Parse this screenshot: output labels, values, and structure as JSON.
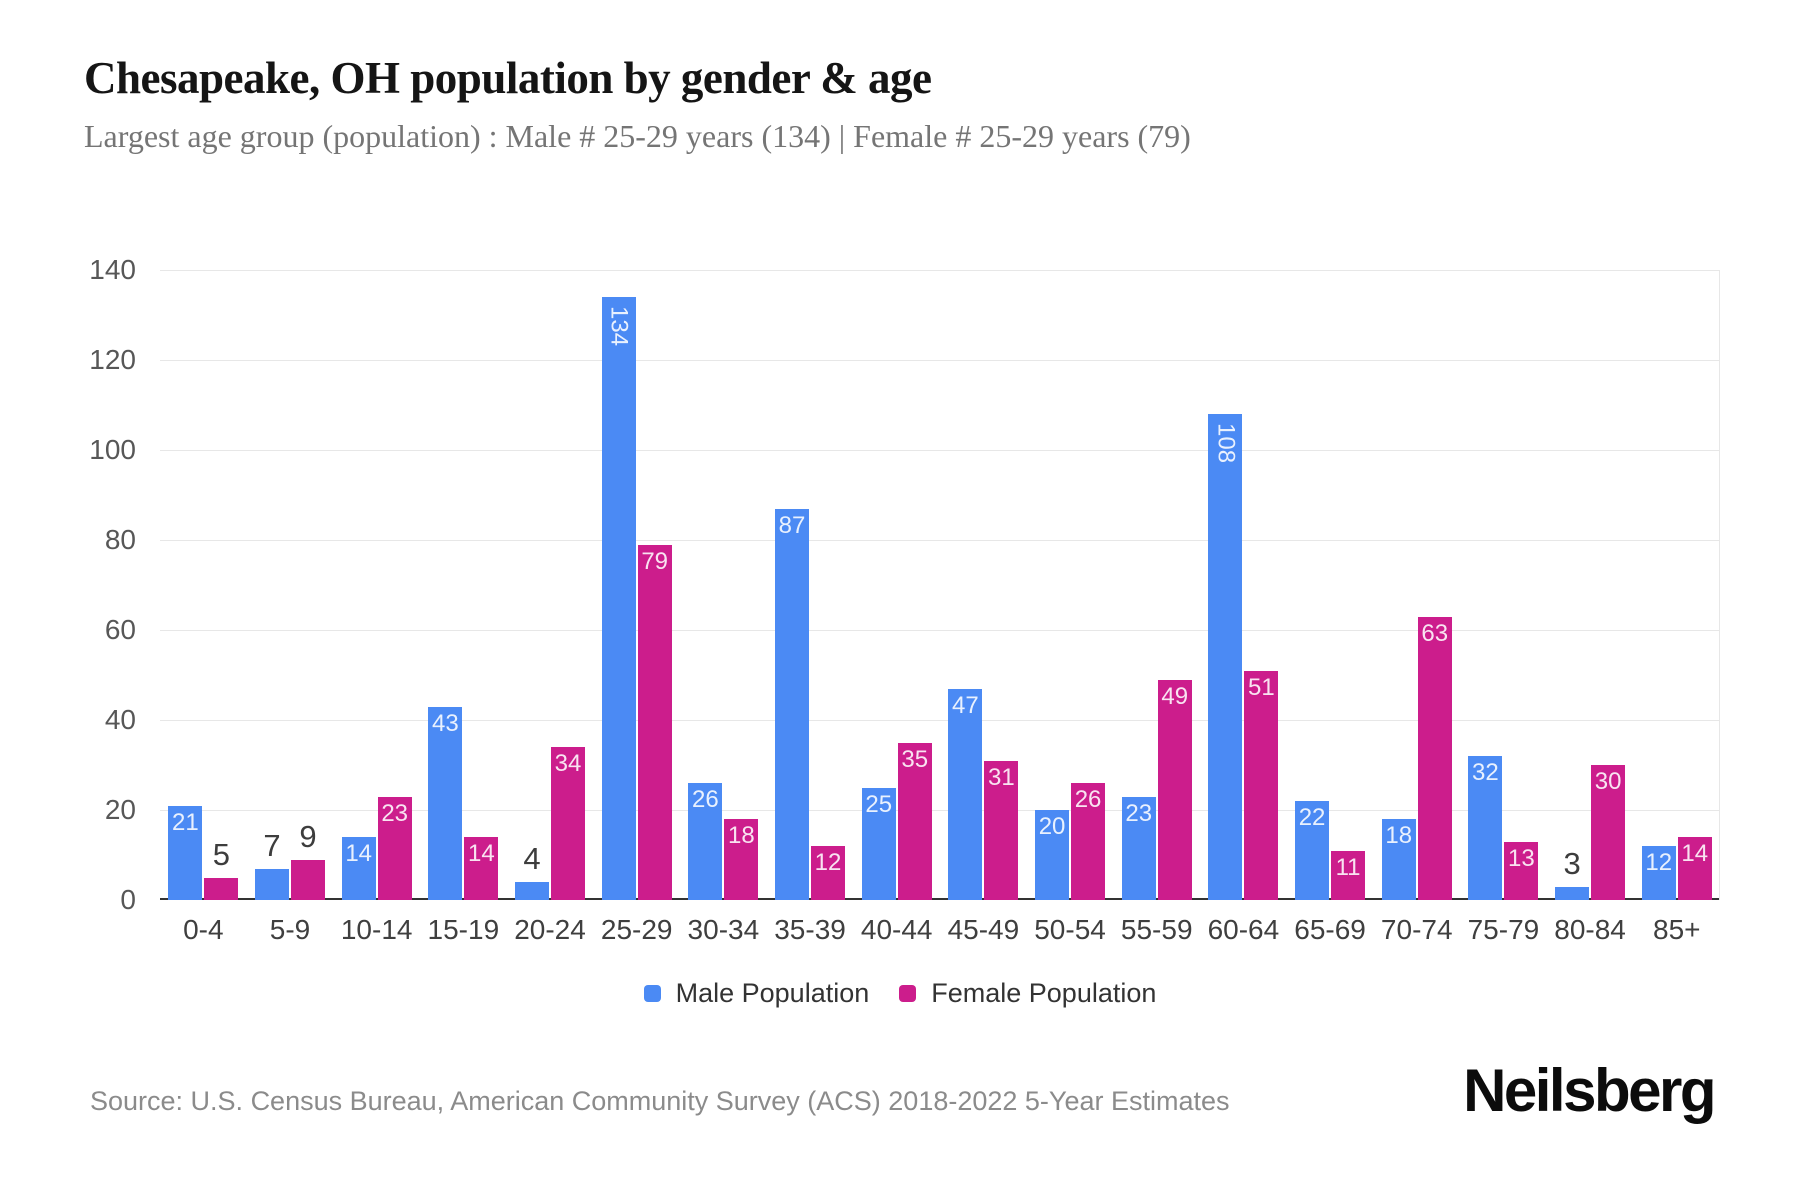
{
  "header": {
    "title": "Chesapeake, OH population by gender & age",
    "subtitle": "Largest age group (population) : Male # 25-29 years (134) | Female # 25-29 years (79)"
  },
  "chart_data": {
    "type": "bar",
    "title": "Chesapeake, OH population by gender & age",
    "subtitle": "Largest age group (population) : Male # 25-29 years (134) | Female # 25-29 years (79)",
    "categories": [
      "0-4",
      "5-9",
      "10-14",
      "15-19",
      "20-24",
      "25-29",
      "30-34",
      "35-39",
      "40-44",
      "45-49",
      "50-54",
      "55-59",
      "60-64",
      "65-69",
      "70-74",
      "75-79",
      "80-84",
      "85+"
    ],
    "series": [
      {
        "name": "Male Population",
        "color": "#4b8af4",
        "values": [
          21,
          7,
          14,
          43,
          4,
          134,
          26,
          87,
          25,
          47,
          20,
          23,
          108,
          22,
          18,
          32,
          3,
          12
        ]
      },
      {
        "name": "Female Population",
        "color": "#cc1d8c",
        "values": [
          5,
          9,
          23,
          14,
          34,
          79,
          18,
          12,
          35,
          31,
          26,
          49,
          51,
          11,
          63,
          13,
          30,
          14
        ]
      }
    ],
    "xlabel": "",
    "ylabel": "",
    "ylim": [
      0,
      140
    ],
    "yticks": [
      0,
      20,
      40,
      60,
      80,
      100,
      120,
      140
    ],
    "grid": true,
    "legend_position": "bottom",
    "label_rules": {
      "inside_min": 10,
      "rotated_min": 100
    }
  },
  "colors": {
    "male": "#4b8af4",
    "female": "#cc1d8c",
    "gridline": "#e7e7e7",
    "axis_line": "#333333"
  },
  "footer": {
    "source": "Source: U.S. Census Bureau, American Community Survey (ACS) 2018-2022 5-Year Estimates",
    "brand": "Neilsberg"
  }
}
